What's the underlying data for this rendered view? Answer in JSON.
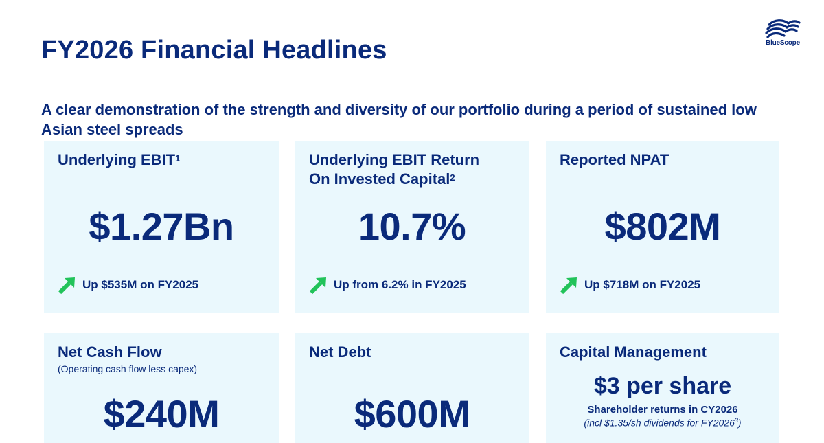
{
  "title": "FY2026 Financial Headlines",
  "logo_text": "BlueScope",
  "subtitle": "A clear demonstration of the strength and diversity of our portfolio during a period of sustained low Asian steel spreads",
  "colors": {
    "navy": "#0a2a7a",
    "card_bg": "#eaf8fd",
    "arrow_green": "#22c35a"
  },
  "cards_row1": [
    {
      "title": "Underlying EBIT",
      "sup": "1",
      "title_line2": "",
      "sup2": "",
      "value": "$1.27Bn",
      "change": "Up $535M on FY2025",
      "icon": "up-arrow-icon"
    },
    {
      "title": "Underlying EBIT Return",
      "sup": "",
      "title_line2": "On Invested Capital",
      "sup2": "2",
      "value": "10.7%",
      "change": "Up from 6.2% in FY2025",
      "icon": "up-arrow-icon"
    },
    {
      "title": "Reported NPAT",
      "sup": "",
      "title_line2": "",
      "sup2": "",
      "value": "$802M",
      "change": "Up $718M on FY2025",
      "icon": "up-arrow-icon"
    }
  ],
  "cards_row2": [
    {
      "title": "Net Cash Flow",
      "note": "(Operating cash flow less capex)",
      "value": "$240M"
    },
    {
      "title": "Net Debt",
      "note": "",
      "value": "$600M"
    },
    {
      "title": "Capital Management",
      "headline": "$3 per share",
      "sub": "Shareholder returns in CY2026",
      "note_text": "(incl $1.35/sh dividends for FY2026",
      "note_sup": "3",
      "note_close": ")"
    }
  ]
}
